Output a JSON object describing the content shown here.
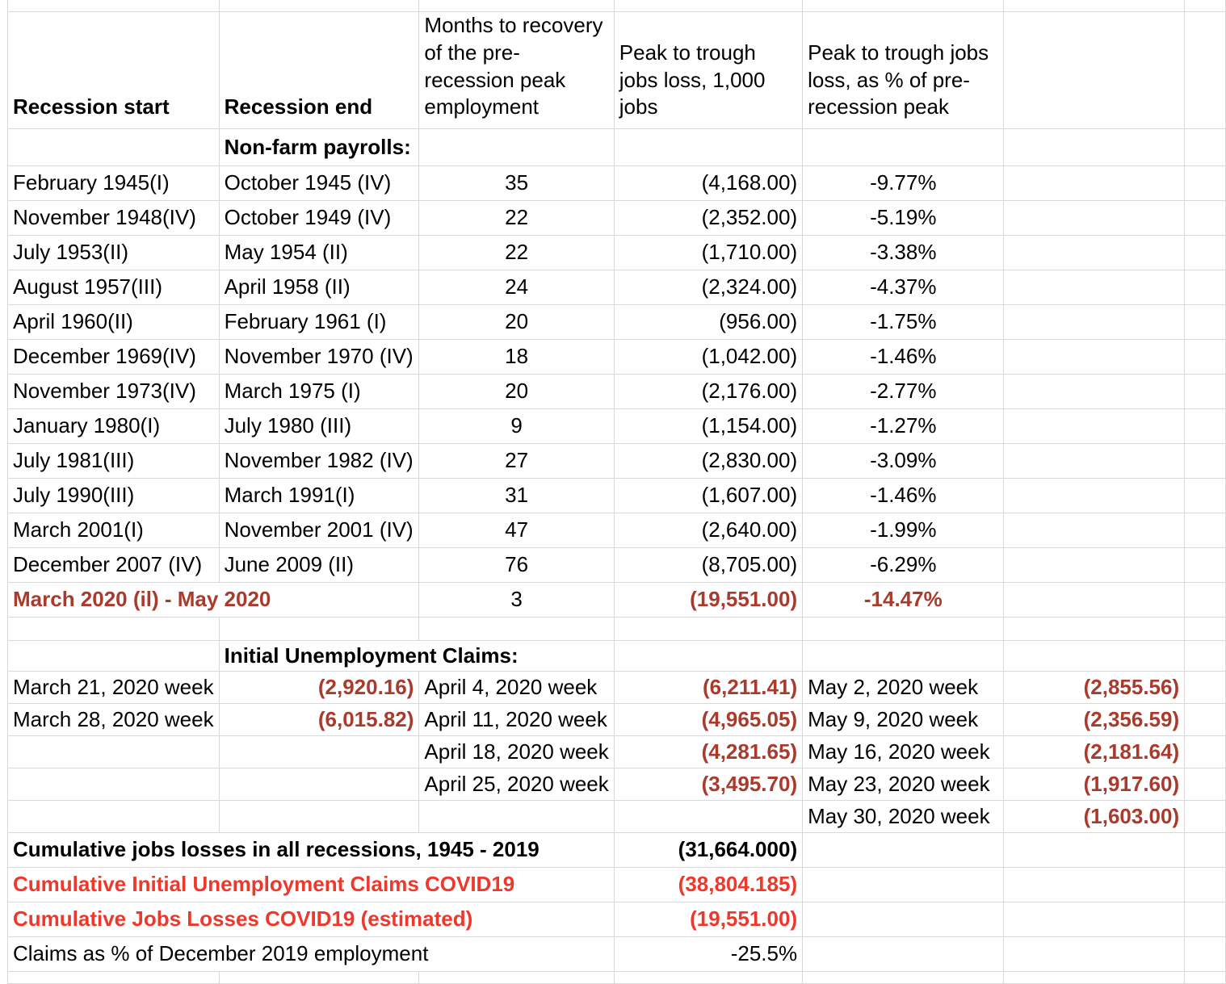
{
  "colors": {
    "dark_red": "#A93A2C",
    "bright_red": "#EE382B",
    "grid_line": "#D9D9D9",
    "text": "#000000",
    "background": "#FFFFFF"
  },
  "columns": {
    "recession_start": "Recession start",
    "recession_end": "Recession end",
    "months_to_recovery": "Months to recovery of the pre-recession peak employment",
    "peak_to_trough_jobs": "Peak to trough jobs loss, 1,000 jobs",
    "peak_to_trough_pct": "Peak to trough jobs loss, as % of pre-recession peak"
  },
  "sections": {
    "nonfarm_label": "Non-farm payrolls:",
    "claims_label": "Initial Unemployment Claims:"
  },
  "recessions": [
    {
      "start": "February 1945(I)",
      "end": "October 1945 (IV)",
      "months": "35",
      "loss": "(4,168.00)",
      "pct": "-9.77%"
    },
    {
      "start": "November 1948(IV)",
      "end": "October 1949 (IV)",
      "months": "22",
      "loss": "(2,352.00)",
      "pct": "-5.19%"
    },
    {
      "start": "July 1953(II)",
      "end": "May 1954 (II)",
      "months": "22",
      "loss": "(1,710.00)",
      "pct": "-3.38%"
    },
    {
      "start": "August 1957(III)",
      "end": "April 1958 (II)",
      "months": "24",
      "loss": "(2,324.00)",
      "pct": "-4.37%"
    },
    {
      "start": "April 1960(II)",
      "end": "February 1961 (I)",
      "months": "20",
      "loss": "(956.00)",
      "pct": "-1.75%"
    },
    {
      "start": "December 1969(IV)",
      "end": "November 1970 (IV)",
      "months": "18",
      "loss": "(1,042.00)",
      "pct": "-1.46%"
    },
    {
      "start": "November 1973(IV)",
      "end": "March 1975 (I)",
      "months": "20",
      "loss": "(2,176.00)",
      "pct": "-2.77%"
    },
    {
      "start": "January 1980(I)",
      "end": "July 1980 (III)",
      "months": "9",
      "loss": "(1,154.00)",
      "pct": "-1.27%"
    },
    {
      "start": "July 1981(III)",
      "end": "November 1982 (IV)",
      "months": "27",
      "loss": "(2,830.00)",
      "pct": "-3.09%"
    },
    {
      "start": "July 1990(III)",
      "end": "March 1991(I)",
      "months": "31",
      "loss": "(1,607.00)",
      "pct": "-1.46%"
    },
    {
      "start": "March 2001(I)",
      "end": "November 2001 (IV)",
      "months": "47",
      "loss": "(2,640.00)",
      "pct": "-1.99%"
    },
    {
      "start": "December 2007 (IV)",
      "end": "June 2009 (II)",
      "months": "76",
      "loss": "(8,705.00)",
      "pct": "-6.29%"
    },
    {
      "start": "March 2020 (il) - May 2020",
      "end": "",
      "months": "3",
      "loss": "(19,551.00)",
      "pct": "-14.47%"
    }
  ],
  "claims": [
    {
      "w1": "March 21, 2020 week",
      "v1": "(2,920.16)",
      "w2": "April 4, 2020 week",
      "v2": "(6,211.41)",
      "w3": "May 2, 2020 week",
      "v3": "(2,855.56)"
    },
    {
      "w1": "March 28, 2020 week",
      "v1": "(6,015.82)",
      "w2": "April 11, 2020 week",
      "v2": "(4,965.05)",
      "w3": "May 9, 2020 week",
      "v3": "(2,356.59)"
    },
    {
      "w1": "",
      "v1": "",
      "w2": "April 18, 2020 week",
      "v2": "(4,281.65)",
      "w3": "May 16, 2020 week",
      "v3": "(2,181.64)"
    },
    {
      "w1": "",
      "v1": "",
      "w2": "April 25, 2020 week",
      "v2": "(3,495.70)",
      "w3": "May 23, 2020 week",
      "v3": "(1,917.60)"
    },
    {
      "w1": "",
      "v1": "",
      "w2": "",
      "v2": "",
      "w3": "May 30, 2020 week",
      "v3": "(1,603.00)"
    }
  ],
  "summary": [
    {
      "label": "Cumulative jobs losses in all recessions, 1945 - 2019",
      "value": "(31,664.000)"
    },
    {
      "label": "Cumulative Initial Unemployment Claims COVID19",
      "value": "(38,804.185)"
    },
    {
      "label": "Cumulative Jobs Losses COVID19 (estimated)",
      "value": "(19,551.00)"
    },
    {
      "label": "Claims as % of December 2019 employment",
      "value": "-25.5%"
    }
  ]
}
